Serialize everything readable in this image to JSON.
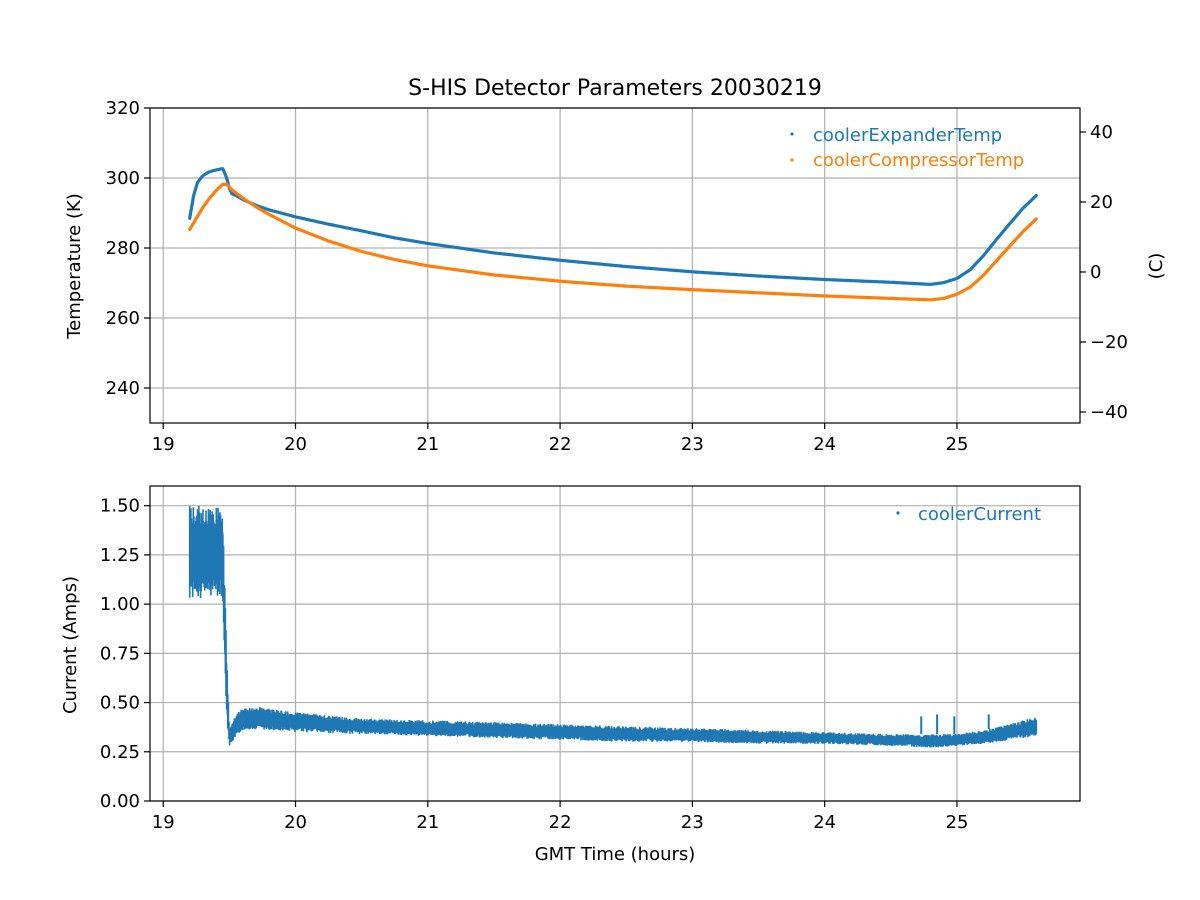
{
  "figure": {
    "title": "S-HIS Detector Parameters 20030219",
    "colors": {
      "series1": "#1f77b4",
      "series2": "#ff7f0e",
      "grid": "#b0b0b0"
    }
  },
  "chart_data": [
    {
      "type": "scatter",
      "title": "S-HIS Detector Parameters 20030219",
      "xlabel": "",
      "ylabel": "Temperature (K)",
      "ylabel_right": "(C)",
      "xlim": [
        18.9,
        25.93
      ],
      "ylim": [
        230,
        320
      ],
      "ylim_right": [
        -43.15,
        46.85
      ],
      "xticks": [
        19,
        20,
        21,
        22,
        23,
        24,
        25
      ],
      "yticks": [
        240,
        260,
        280,
        300,
        320
      ],
      "yticks_right": [
        -40,
        -20,
        0,
        20,
        40
      ],
      "grid": true,
      "legend_position": "top-right",
      "series": [
        {
          "name": "coolerExpanderTemp",
          "color": "#1f77b4",
          "x": [
            19.2,
            19.23,
            19.26,
            19.3,
            19.35,
            19.4,
            19.45,
            19.48,
            19.5,
            19.52,
            19.55,
            19.6,
            19.7,
            19.8,
            20.0,
            20.25,
            20.5,
            20.75,
            21.0,
            21.5,
            22.0,
            22.5,
            23.0,
            23.5,
            24.0,
            24.5,
            24.8,
            24.9,
            25.0,
            25.1,
            25.2,
            25.3,
            25.4,
            25.5,
            25.6
          ],
          "y": [
            288.5,
            295,
            298.8,
            300.7,
            301.8,
            302.3,
            302.7,
            300,
            297,
            295.5,
            295,
            293.9,
            292.2,
            290.9,
            288.9,
            286.8,
            284.9,
            282.9,
            281.3,
            278.6,
            276.5,
            274.7,
            273.2,
            272,
            271,
            270.2,
            269.6,
            270.1,
            271.3,
            273.8,
            277.8,
            282.5,
            287,
            291.4,
            295
          ]
        },
        {
          "name": "coolerCompressorTemp",
          "color": "#ff7f0e",
          "x": [
            19.2,
            19.25,
            19.3,
            19.35,
            19.4,
            19.45,
            19.48,
            19.52,
            19.6,
            19.7,
            19.8,
            20.0,
            20.25,
            20.5,
            20.75,
            21.0,
            21.5,
            22.0,
            22.5,
            23.0,
            23.5,
            24.0,
            24.5,
            24.8,
            24.9,
            25.0,
            25.1,
            25.2,
            25.3,
            25.4,
            25.5,
            25.6
          ],
          "y": [
            285.3,
            288.5,
            291.6,
            294.2,
            296.4,
            298.2,
            298.2,
            296.6,
            294.3,
            291.8,
            289.6,
            285.7,
            282,
            279,
            276.7,
            274.9,
            272.3,
            270.5,
            269.1,
            268.1,
            267.2,
            266.3,
            265.6,
            265.2,
            265.6,
            266.8,
            268.8,
            272.2,
            276.4,
            280.6,
            284.7,
            288.3
          ]
        }
      ]
    },
    {
      "type": "scatter",
      "title": "",
      "xlabel": "GMT Time (hours)",
      "ylabel": "Current (Amps)",
      "xlim": [
        18.9,
        25.93
      ],
      "ylim": [
        0,
        1.6
      ],
      "xticks": [
        19,
        20,
        21,
        22,
        23,
        24,
        25
      ],
      "yticks": [
        0.0,
        0.25,
        0.5,
        0.75,
        1.0,
        1.25,
        1.5
      ],
      "ytick_labels": [
        "0.00",
        "0.25",
        "0.50",
        "0.75",
        "1.00",
        "1.25",
        "1.50"
      ],
      "grid": true,
      "legend_position": "top-right",
      "series": [
        {
          "name": "coolerCurrent",
          "color": "#1f77b4",
          "band_x": [
            19.2,
            19.45,
            19.46,
            19.48,
            19.5,
            19.55,
            19.6,
            19.7,
            20.0,
            20.5,
            21.0,
            21.5,
            22.0,
            22.5,
            23.0,
            23.5,
            24.0,
            24.5,
            24.8,
            25.0,
            25.2,
            25.4,
            25.6
          ],
          "band_low": [
            1.03,
            1.03,
            0.75,
            0.4,
            0.27,
            0.33,
            0.36,
            0.36,
            0.35,
            0.34,
            0.33,
            0.32,
            0.31,
            0.3,
            0.3,
            0.29,
            0.29,
            0.28,
            0.27,
            0.28,
            0.29,
            0.31,
            0.33
          ],
          "band_high": [
            1.5,
            1.5,
            1.2,
            0.75,
            0.37,
            0.44,
            0.47,
            0.48,
            0.45,
            0.42,
            0.41,
            0.4,
            0.39,
            0.38,
            0.37,
            0.36,
            0.35,
            0.34,
            0.34,
            0.34,
            0.36,
            0.39,
            0.43
          ],
          "spikes": [
            {
              "x": 24.73,
              "y": 0.43
            },
            {
              "x": 24.85,
              "y": 0.44
            },
            {
              "x": 24.98,
              "y": 0.43
            },
            {
              "x": 25.24,
              "y": 0.44
            }
          ]
        }
      ]
    }
  ]
}
